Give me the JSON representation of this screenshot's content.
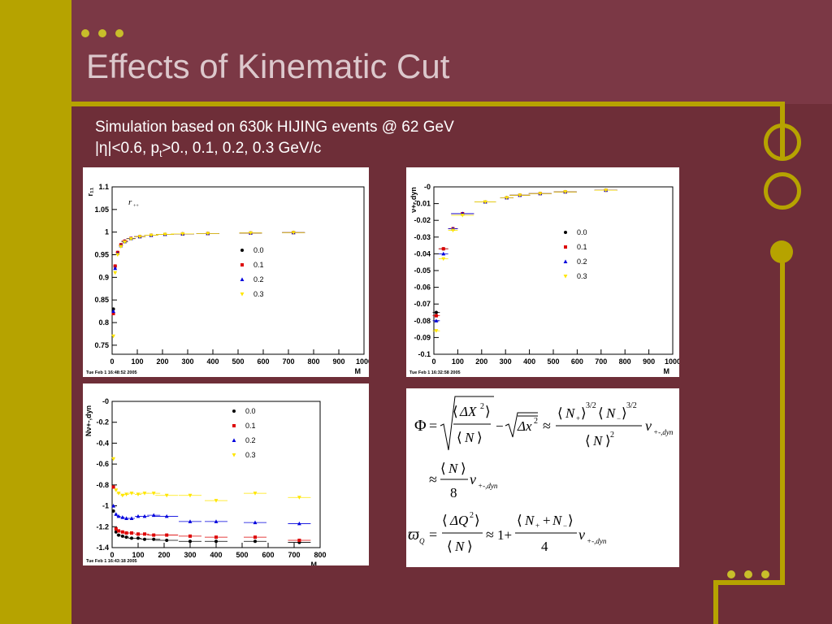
{
  "slide": {
    "title": "Effects of Kinematic Cut",
    "subtitle_line1": "Simulation based on 630k HIJING  events @ 62 GeV",
    "subtitle_line2_pre": "|η|<0.6,  p",
    "subtitle_line2_sub": "t",
    "subtitle_line2_post": ">0., 0.1, 0.2, 0.3 GeV/c"
  },
  "colors": {
    "bg": "#6e2e38",
    "accent": "#b6a300",
    "s0": "#000000",
    "s1": "#dd0000",
    "s2": "#0000dd",
    "s3": "#ffe600"
  },
  "chart_data": [
    {
      "type": "scatter",
      "title": "",
      "xlabel": "M",
      "ylabel": "r₁₁",
      "stamp": "Tue Feb  1 16:48:52 2005",
      "xlim": [
        0,
        1000
      ],
      "ylim": [
        0.73,
        1.1
      ],
      "xticks": [
        0,
        100,
        200,
        300,
        400,
        500,
        600,
        700,
        800,
        900,
        1000
      ],
      "yticks": [
        0.75,
        0.8,
        0.85,
        0.9,
        0.95,
        1,
        1.05,
        1.1
      ],
      "ytick_labels": [
        "0.75",
        "0.8",
        "0.85",
        "0.9",
        "0.95",
        "1",
        "1.05",
        "1.1"
      ],
      "legend": [
        "0.0",
        "0.1",
        "0.2",
        "0.3"
      ],
      "legend_pos": "middle-right",
      "annotation": "r",
      "annotation_sub": "++",
      "series": [
        {
          "name": "0.0",
          "x": [
            5,
            12,
            22,
            35,
            50,
            75,
            110,
            155,
            210,
            280,
            380,
            550,
            720
          ],
          "y": [
            0.83,
            0.925,
            0.955,
            0.972,
            0.98,
            0.986,
            0.99,
            0.993,
            0.995,
            0.996,
            0.997,
            0.998,
            0.999
          ]
        },
        {
          "name": "0.1",
          "x": [
            5,
            12,
            22,
            35,
            50,
            75,
            110,
            155,
            210,
            280,
            380,
            550,
            720
          ],
          "y": [
            0.82,
            0.925,
            0.955,
            0.972,
            0.98,
            0.986,
            0.99,
            0.993,
            0.995,
            0.996,
            0.997,
            0.998,
            0.999
          ]
        },
        {
          "name": "0.2",
          "x": [
            5,
            12,
            22,
            35,
            50,
            75,
            110,
            155,
            210,
            280,
            380,
            550,
            720
          ],
          "y": [
            0.825,
            0.92,
            0.953,
            0.97,
            0.979,
            0.986,
            0.99,
            0.993,
            0.995,
            0.996,
            0.997,
            0.998,
            0.999
          ]
        },
        {
          "name": "0.3",
          "x": [
            5,
            12,
            22,
            35,
            50,
            75,
            110,
            155,
            210,
            280,
            380,
            550,
            720
          ],
          "y": [
            0.77,
            0.91,
            0.95,
            0.968,
            0.978,
            0.985,
            0.99,
            0.993,
            0.995,
            0.996,
            0.997,
            0.998,
            0.999
          ]
        }
      ]
    },
    {
      "type": "scatter",
      "title": "",
      "xlabel": "M",
      "ylabel": "ν+-,dyn",
      "stamp": "Tue Feb  1 16:32:58 2005",
      "xlim": [
        0,
        1000
      ],
      "ylim": [
        -0.1,
        0
      ],
      "xticks": [
        0,
        100,
        200,
        300,
        400,
        500,
        600,
        700,
        800,
        900,
        1000
      ],
      "yticks": [
        0,
        -0.01,
        -0.02,
        -0.03,
        -0.04,
        -0.05,
        -0.06,
        -0.07,
        -0.08,
        -0.09,
        -0.1
      ],
      "ytick_labels": [
        "-0",
        "-0.01",
        "-0.02",
        "-0.03",
        "-0.04",
        "-0.05",
        "-0.06",
        "-0.07",
        "-0.08",
        "-0.09",
        "-0.1"
      ],
      "legend": [
        "0.0",
        "0.1",
        "0.2",
        "0.3"
      ],
      "legend_pos": "middle-right",
      "series": [
        {
          "name": "0.0",
          "x": [
            10,
            40,
            80,
            120,
            215,
            305,
            360,
            445,
            550,
            720
          ],
          "y": [
            -0.075,
            -0.037,
            -0.025,
            -0.016,
            -0.009,
            -0.0065,
            -0.005,
            -0.004,
            -0.003,
            -0.002
          ]
        },
        {
          "name": "0.1",
          "x": [
            10,
            40,
            80,
            120,
            215,
            305,
            360,
            445,
            550,
            720
          ],
          "y": [
            -0.077,
            -0.037,
            -0.025,
            -0.016,
            -0.009,
            -0.0065,
            -0.005,
            -0.004,
            -0.003,
            -0.002
          ]
        },
        {
          "name": "0.2",
          "x": [
            10,
            40,
            80,
            120,
            215,
            305,
            360,
            445,
            550,
            720
          ],
          "y": [
            -0.08,
            -0.04,
            -0.025,
            -0.016,
            -0.009,
            -0.0065,
            -0.005,
            -0.004,
            -0.003,
            -0.002
          ]
        },
        {
          "name": "0.3",
          "x": [
            10,
            40,
            80,
            120,
            215,
            305,
            360,
            445,
            550,
            720
          ],
          "y": [
            -0.086,
            -0.043,
            -0.026,
            -0.017,
            -0.009,
            -0.0065,
            -0.005,
            -0.004,
            -0.003,
            -0.002
          ]
        }
      ]
    },
    {
      "type": "scatter",
      "title": "",
      "xlabel": "M",
      "ylabel": "Nν+-,dyn",
      "stamp": "Tue Feb  1 16:43:18 2005",
      "xlim": [
        0,
        800
      ],
      "ylim": [
        -1.4,
        0
      ],
      "xticks": [
        0,
        100,
        200,
        300,
        400,
        500,
        600,
        700,
        800
      ],
      "yticks": [
        0,
        -0.2,
        -0.4,
        -0.6,
        -0.8,
        -1,
        -1.2,
        -1.4
      ],
      "ytick_labels": [
        "-0",
        "-0.2",
        "-0.4",
        "-0.6",
        "-0.8",
        "-1",
        "-1.2",
        "-1.4"
      ],
      "legend": [
        "0.0",
        "0.1",
        "0.2",
        "0.3"
      ],
      "legend_pos": "top-right",
      "series": [
        {
          "name": "0.0",
          "x": [
            5,
            15,
            25,
            40,
            55,
            75,
            100,
            125,
            160,
            210,
            300,
            400,
            550,
            720
          ],
          "y": [
            -1.05,
            -1.25,
            -1.28,
            -1.29,
            -1.3,
            -1.31,
            -1.31,
            -1.32,
            -1.32,
            -1.33,
            -1.34,
            -1.34,
            -1.34,
            -1.35
          ]
        },
        {
          "name": "0.1",
          "x": [
            5,
            15,
            25,
            40,
            55,
            75,
            100,
            125,
            160,
            210,
            300,
            400,
            550,
            720
          ],
          "y": [
            -0.82,
            -1.22,
            -1.24,
            -1.25,
            -1.26,
            -1.26,
            -1.27,
            -1.27,
            -1.28,
            -1.28,
            -1.29,
            -1.3,
            -1.3,
            -1.33
          ]
        },
        {
          "name": "0.2",
          "x": [
            5,
            15,
            25,
            40,
            55,
            75,
            100,
            125,
            160,
            210,
            300,
            400,
            550,
            720
          ],
          "y": [
            -1.0,
            -1.08,
            -1.1,
            -1.11,
            -1.12,
            -1.12,
            -1.1,
            -1.1,
            -1.09,
            -1.1,
            -1.15,
            -1.15,
            -1.16,
            -1.17
          ]
        },
        {
          "name": "0.3",
          "x": [
            5,
            15,
            25,
            40,
            55,
            75,
            100,
            125,
            160,
            210,
            300,
            400,
            550,
            720
          ],
          "y": [
            -0.55,
            -0.85,
            -0.88,
            -0.9,
            -0.89,
            -0.88,
            -0.89,
            -0.88,
            -0.88,
            -0.9,
            -0.9,
            -0.95,
            -0.88,
            -0.92
          ]
        }
      ]
    }
  ],
  "formulas": {
    "phi": "Φ",
    "varpi": "ϖ",
    "varpi_sub": "Q",
    "approx": "≈",
    "eq": "=",
    "one_plus": "1+",
    "eight": "8",
    "four": "4",
    "N": "N",
    "nu_sub": "+-,dyn",
    "dX2": "ΔX",
    "dx2": "Δx",
    "dQ2": "ΔQ",
    "exp32": "3/2",
    "two": "2",
    "Nplus": "N",
    "Nminus": "N",
    "plus": "+",
    "minus": "−"
  }
}
